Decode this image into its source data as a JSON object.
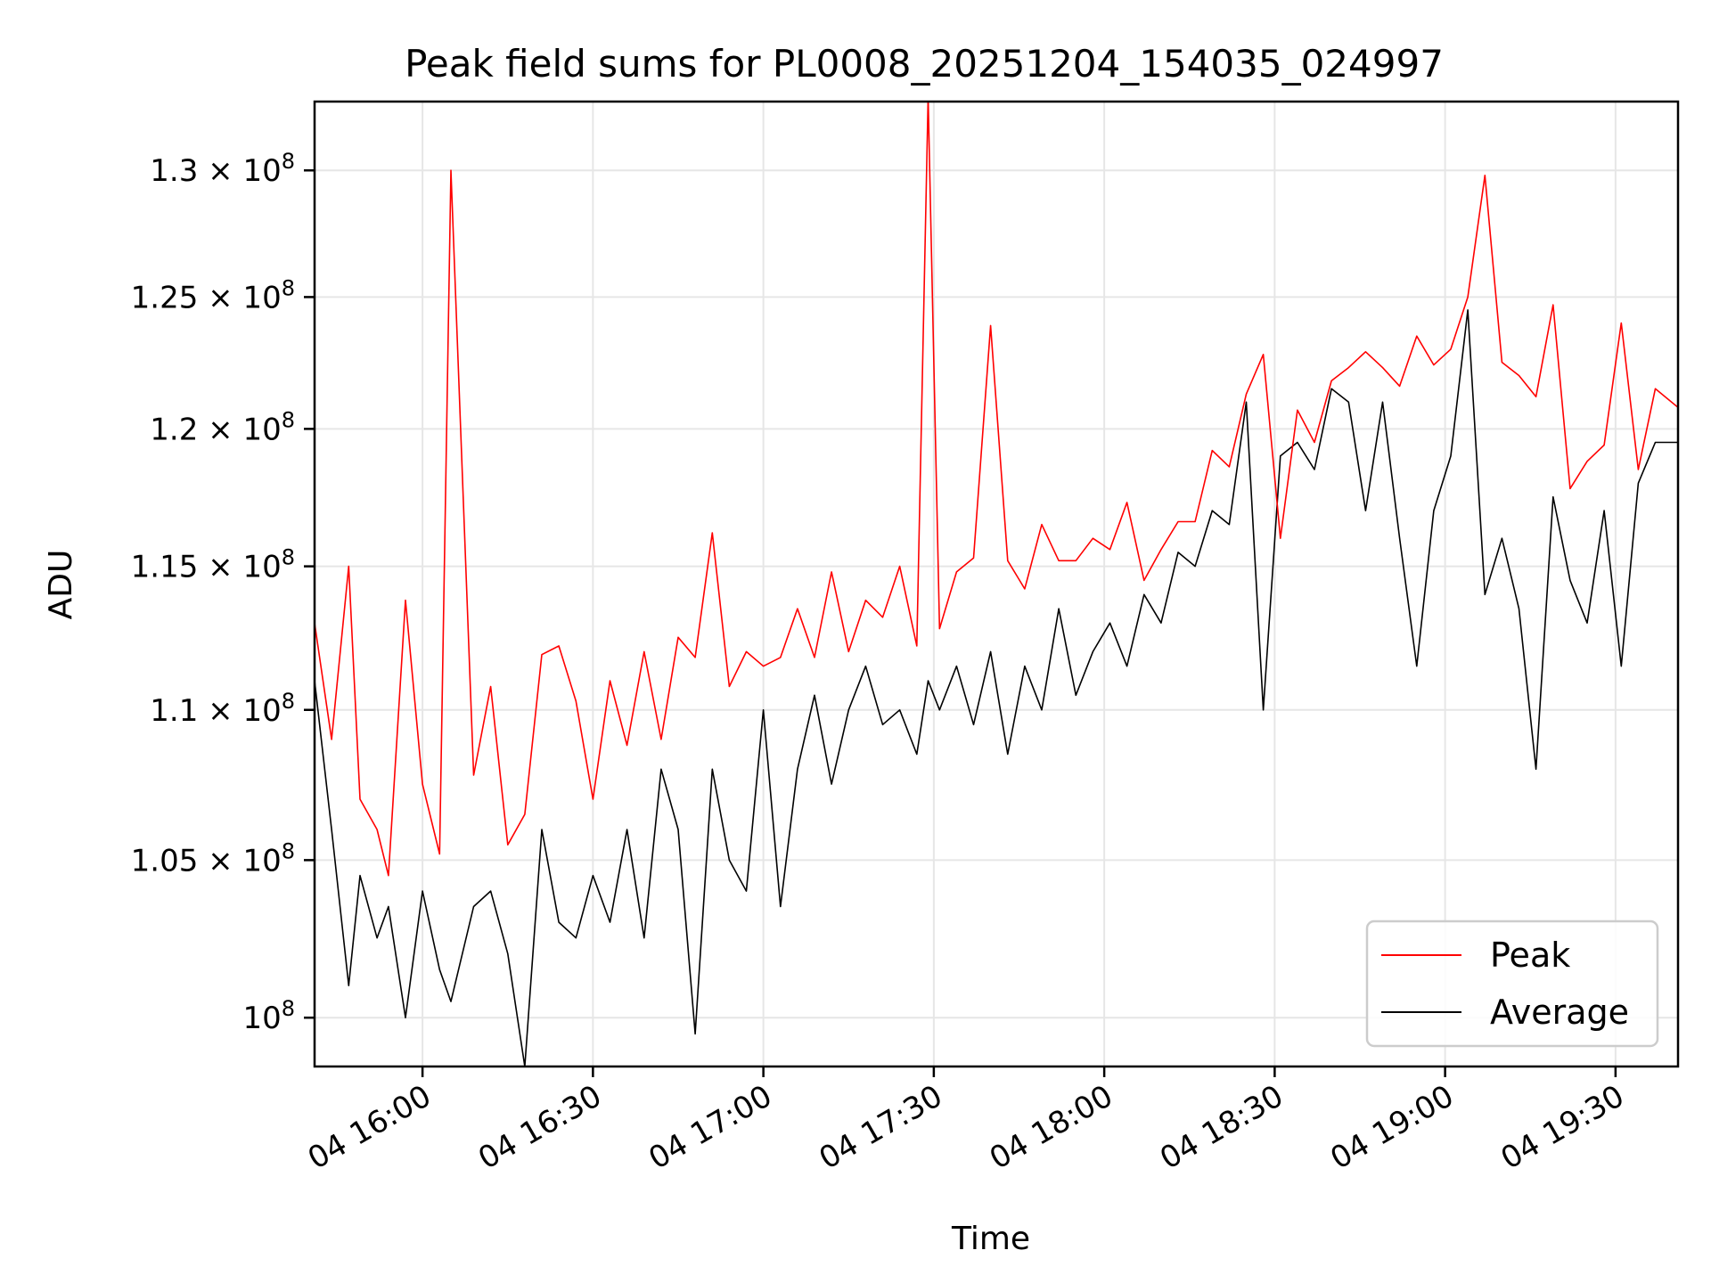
{
  "chart_data": {
    "type": "line",
    "title": "Peak field sums for PL0008_20251204_154035_024997",
    "xlabel": "Time",
    "ylabel": "ADU",
    "y_scale": "log",
    "grid": true,
    "legend_position": "lower-right",
    "xlim": [
      "2025-12-04 15:41",
      "2025-12-04 19:41"
    ],
    "ylim": [
      98500000,
      132800000
    ],
    "x_ticks": [
      {
        "value": "2025-12-04 16:00",
        "label": "04 16:00"
      },
      {
        "value": "2025-12-04 16:30",
        "label": "04 16:30"
      },
      {
        "value": "2025-12-04 17:00",
        "label": "04 17:00"
      },
      {
        "value": "2025-12-04 17:30",
        "label": "04 17:30"
      },
      {
        "value": "2025-12-04 18:00",
        "label": "04 18:00"
      },
      {
        "value": "2025-12-04 18:30",
        "label": "04 18:30"
      },
      {
        "value": "2025-12-04 19:00",
        "label": "04 19:00"
      },
      {
        "value": "2025-12-04 19:30",
        "label": "04 19:30"
      }
    ],
    "y_ticks": [
      {
        "value": 100000000,
        "mantissa": "",
        "exponent": "8"
      },
      {
        "value": 105000000,
        "mantissa": "1.05",
        "exponent": "8"
      },
      {
        "value": 110000000,
        "mantissa": "1.1",
        "exponent": "8"
      },
      {
        "value": 115000000,
        "mantissa": "1.15",
        "exponent": "8"
      },
      {
        "value": 120000000,
        "mantissa": "1.2",
        "exponent": "8"
      },
      {
        "value": 125000000,
        "mantissa": "1.25",
        "exponent": "8"
      },
      {
        "value": 130000000,
        "mantissa": "1.3",
        "exponent": "8"
      }
    ],
    "series": [
      {
        "name": "Peak",
        "color": "#ff0000",
        "x": [
          "2025-12-04 15:41",
          "2025-12-04 15:44",
          "2025-12-04 15:47",
          "2025-12-04 15:49",
          "2025-12-04 15:52",
          "2025-12-04 15:54",
          "2025-12-04 15:57",
          "2025-12-04 16:00",
          "2025-12-04 16:03",
          "2025-12-04 16:05",
          "2025-12-04 16:09",
          "2025-12-04 16:12",
          "2025-12-04 16:15",
          "2025-12-04 16:18",
          "2025-12-04 16:21",
          "2025-12-04 16:24",
          "2025-12-04 16:27",
          "2025-12-04 16:30",
          "2025-12-04 16:33",
          "2025-12-04 16:36",
          "2025-12-04 16:39",
          "2025-12-04 16:42",
          "2025-12-04 16:45",
          "2025-12-04 16:48",
          "2025-12-04 16:51",
          "2025-12-04 16:54",
          "2025-12-04 16:57",
          "2025-12-04 17:00",
          "2025-12-04 17:03",
          "2025-12-04 17:06",
          "2025-12-04 17:09",
          "2025-12-04 17:12",
          "2025-12-04 17:15",
          "2025-12-04 17:18",
          "2025-12-04 17:21",
          "2025-12-04 17:24",
          "2025-12-04 17:27",
          "2025-12-04 17:29",
          "2025-12-04 17:31",
          "2025-12-04 17:34",
          "2025-12-04 17:37",
          "2025-12-04 17:40",
          "2025-12-04 17:43",
          "2025-12-04 17:46",
          "2025-12-04 17:49",
          "2025-12-04 17:52",
          "2025-12-04 17:55",
          "2025-12-04 17:58",
          "2025-12-04 18:01",
          "2025-12-04 18:04",
          "2025-12-04 18:07",
          "2025-12-04 18:10",
          "2025-12-04 18:13",
          "2025-12-04 18:16",
          "2025-12-04 18:19",
          "2025-12-04 18:22",
          "2025-12-04 18:25",
          "2025-12-04 18:28",
          "2025-12-04 18:31",
          "2025-12-04 18:34",
          "2025-12-04 18:37",
          "2025-12-04 18:40",
          "2025-12-04 18:43",
          "2025-12-04 18:46",
          "2025-12-04 18:49",
          "2025-12-04 18:52",
          "2025-12-04 18:55",
          "2025-12-04 18:58",
          "2025-12-04 19:01",
          "2025-12-04 19:04",
          "2025-12-04 19:07",
          "2025-12-04 19:10",
          "2025-12-04 19:13",
          "2025-12-04 19:16",
          "2025-12-04 19:19",
          "2025-12-04 19:22",
          "2025-12-04 19:25",
          "2025-12-04 19:28",
          "2025-12-04 19:31",
          "2025-12-04 19:34",
          "2025-12-04 19:37",
          "2025-12-04 19:41"
        ],
        "values": [
          113000000,
          109000000,
          115000000,
          107000000,
          106000000,
          104500000,
          113800000,
          107500000,
          105200000,
          130000000,
          107800000,
          110800000,
          105500000,
          106500000,
          111900000,
          112200000,
          110300000,
          107000000,
          111000000,
          108800000,
          112000000,
          109000000,
          112500000,
          111800000,
          116200000,
          110800000,
          112000000,
          111500000,
          111800000,
          113500000,
          111800000,
          114800000,
          112000000,
          113800000,
          113200000,
          115000000,
          112200000,
          133000000,
          112800000,
          114800000,
          115300000,
          123900000,
          115200000,
          114200000,
          116500000,
          115200000,
          115200000,
          116000000,
          115600000,
          117300000,
          114500000,
          115600000,
          116600000,
          116600000,
          119200000,
          118600000,
          121300000,
          122800000,
          116000000,
          120700000,
          119500000,
          121800000,
          122300000,
          122900000,
          122300000,
          121600000,
          123500000,
          122400000,
          123000000,
          125000000,
          129800000,
          122500000,
          122000000,
          121200000,
          124700000,
          117800000,
          118800000,
          119400000,
          124000000,
          118500000,
          121500000,
          120800000
        ],
        "series_note": ""
      },
      {
        "name": "Average",
        "color": "#000000",
        "x": [
          "2025-12-04 15:41",
          "2025-12-04 15:44",
          "2025-12-04 15:47",
          "2025-12-04 15:49",
          "2025-12-04 15:52",
          "2025-12-04 15:54",
          "2025-12-04 15:57",
          "2025-12-04 16:00",
          "2025-12-04 16:03",
          "2025-12-04 16:05",
          "2025-12-04 16:09",
          "2025-12-04 16:12",
          "2025-12-04 16:15",
          "2025-12-04 16:18",
          "2025-12-04 16:21",
          "2025-12-04 16:24",
          "2025-12-04 16:27",
          "2025-12-04 16:30",
          "2025-12-04 16:33",
          "2025-12-04 16:36",
          "2025-12-04 16:39",
          "2025-12-04 16:42",
          "2025-12-04 16:45",
          "2025-12-04 16:48",
          "2025-12-04 16:51",
          "2025-12-04 16:54",
          "2025-12-04 16:57",
          "2025-12-04 17:00",
          "2025-12-04 17:03",
          "2025-12-04 17:06",
          "2025-12-04 17:09",
          "2025-12-04 17:12",
          "2025-12-04 17:15",
          "2025-12-04 17:18",
          "2025-12-04 17:21",
          "2025-12-04 17:24",
          "2025-12-04 17:27",
          "2025-12-04 17:29",
          "2025-12-04 17:31",
          "2025-12-04 17:34",
          "2025-12-04 17:37",
          "2025-12-04 17:40",
          "2025-12-04 17:43",
          "2025-12-04 17:46",
          "2025-12-04 17:49",
          "2025-12-04 17:52",
          "2025-12-04 17:55",
          "2025-12-04 17:58",
          "2025-12-04 18:01",
          "2025-12-04 18:04",
          "2025-12-04 18:07",
          "2025-12-04 18:10",
          "2025-12-04 18:13",
          "2025-12-04 18:16",
          "2025-12-04 18:19",
          "2025-12-04 18:22",
          "2025-12-04 18:25",
          "2025-12-04 18:28",
          "2025-12-04 18:31",
          "2025-12-04 18:34",
          "2025-12-04 18:37",
          "2025-12-04 18:40",
          "2025-12-04 18:43",
          "2025-12-04 18:46",
          "2025-12-04 18:49",
          "2025-12-04 18:52",
          "2025-12-04 18:55",
          "2025-12-04 18:58",
          "2025-12-04 19:01",
          "2025-12-04 19:04",
          "2025-12-04 19:07",
          "2025-12-04 19:10",
          "2025-12-04 19:13",
          "2025-12-04 19:16",
          "2025-12-04 19:19",
          "2025-12-04 19:22",
          "2025-12-04 19:25",
          "2025-12-04 19:28",
          "2025-12-04 19:31",
          "2025-12-04 19:34",
          "2025-12-04 19:37",
          "2025-12-04 19:41"
        ],
        "values": [
          111000000,
          106000000,
          101000000,
          104500000,
          102500000,
          103500000,
          100000000,
          104000000,
          101500000,
          100500000,
          103500000,
          104000000,
          102000000,
          98500000,
          106000000,
          103000000,
          102500000,
          104500000,
          103000000,
          106000000,
          102500000,
          108000000,
          106000000,
          99500000,
          108000000,
          105000000,
          104000000,
          110000000,
          103500000,
          108000000,
          110500000,
          107500000,
          110000000,
          111500000,
          109500000,
          110000000,
          108500000,
          111000000,
          110000000,
          111500000,
          109500000,
          112000000,
          108500000,
          111500000,
          110000000,
          113500000,
          110500000,
          112000000,
          113000000,
          111500000,
          114000000,
          113000000,
          115500000,
          115000000,
          117000000,
          116500000,
          121000000,
          110000000,
          119000000,
          119500000,
          118500000,
          121500000,
          121000000,
          117000000,
          121000000,
          116000000,
          111500000,
          117000000,
          119000000,
          124500000,
          114000000,
          116000000,
          113500000,
          108000000,
          117500000,
          114500000,
          113000000,
          117000000,
          111500000,
          118000000,
          119500000,
          119500000
        ]
      }
    ]
  }
}
